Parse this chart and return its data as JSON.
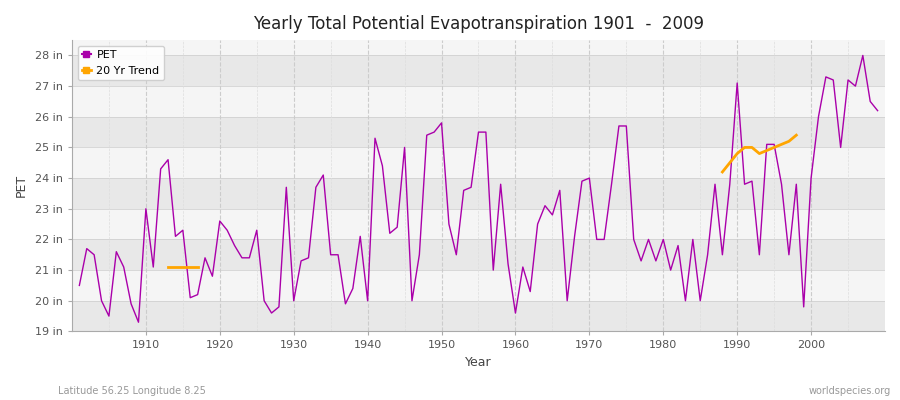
{
  "title": "Yearly Total Potential Evapotranspiration 1901  -  2009",
  "xlabel": "Year",
  "ylabel": "PET",
  "footnote_left": "Latitude 56.25 Longitude 8.25",
  "footnote_right": "worldspecies.org",
  "pet_color": "#aa00aa",
  "trend_color": "#ffa500",
  "fig_bg_color": "#ffffff",
  "plot_bg_color": "#f5f5f5",
  "stripe_color": "#e8e8e8",
  "ylim": [
    19,
    28.5
  ],
  "yticks": [
    19,
    20,
    21,
    22,
    23,
    24,
    25,
    26,
    27,
    28
  ],
  "xlim": [
    1900,
    2010
  ],
  "xticks": [
    1910,
    1920,
    1930,
    1940,
    1950,
    1960,
    1970,
    1980,
    1990,
    2000
  ],
  "years": [
    1901,
    1902,
    1903,
    1904,
    1905,
    1906,
    1907,
    1908,
    1909,
    1910,
    1911,
    1912,
    1913,
    1914,
    1915,
    1916,
    1917,
    1918,
    1919,
    1920,
    1921,
    1922,
    1923,
    1924,
    1925,
    1926,
    1927,
    1928,
    1929,
    1930,
    1931,
    1932,
    1933,
    1934,
    1935,
    1936,
    1937,
    1938,
    1939,
    1940,
    1941,
    1942,
    1943,
    1944,
    1945,
    1946,
    1947,
    1948,
    1949,
    1950,
    1951,
    1952,
    1953,
    1954,
    1955,
    1956,
    1957,
    1958,
    1959,
    1960,
    1961,
    1962,
    1963,
    1964,
    1965,
    1966,
    1967,
    1968,
    1969,
    1970,
    1971,
    1972,
    1973,
    1974,
    1975,
    1976,
    1977,
    1978,
    1979,
    1980,
    1981,
    1982,
    1983,
    1984,
    1985,
    1986,
    1987,
    1988,
    1989,
    1990,
    1991,
    1992,
    1993,
    1994,
    1995,
    1996,
    1997,
    1998,
    1999,
    2000,
    2001,
    2002,
    2003,
    2004,
    2005,
    2006,
    2007,
    2008,
    2009
  ],
  "pet_values": [
    20.5,
    21.7,
    21.5,
    20.0,
    19.5,
    21.6,
    21.1,
    19.9,
    19.3,
    23.0,
    21.1,
    24.3,
    24.6,
    22.1,
    22.3,
    20.1,
    20.2,
    21.4,
    20.8,
    22.6,
    22.3,
    21.8,
    21.4,
    21.4,
    22.3,
    20.0,
    19.6,
    19.8,
    23.7,
    20.0,
    21.3,
    21.4,
    23.7,
    24.1,
    21.5,
    21.5,
    19.9,
    20.4,
    22.1,
    20.0,
    25.3,
    24.4,
    22.2,
    22.4,
    25.0,
    20.0,
    21.5,
    25.4,
    25.5,
    25.8,
    22.5,
    21.5,
    23.6,
    23.7,
    25.5,
    25.5,
    21.0,
    23.8,
    21.2,
    19.6,
    21.1,
    20.3,
    22.5,
    23.1,
    22.8,
    23.6,
    20.0,
    22.1,
    23.9,
    24.0,
    22.0,
    22.0,
    23.8,
    25.7,
    25.7,
    22.0,
    21.3,
    22.0,
    21.3,
    22.0,
    21.0,
    21.8,
    20.0,
    22.0,
    20.0,
    21.5,
    23.8,
    21.5,
    23.8,
    27.1,
    23.8,
    23.9,
    21.5,
    25.1,
    25.1,
    23.8,
    21.5,
    23.8,
    19.8,
    24.0,
    26.0,
    27.3,
    27.2,
    25.0,
    27.2,
    27.0,
    28.0,
    26.5,
    26.2
  ],
  "trend1_years": [
    1913,
    1914,
    1915,
    1916,
    1917
  ],
  "trend1_values": [
    21.1,
    21.1,
    21.1,
    21.1,
    21.1
  ],
  "trend2_years": [
    1988,
    1989,
    1990,
    1991,
    1992,
    1993,
    1994,
    1995,
    1996,
    1997,
    1998
  ],
  "trend2_values": [
    24.2,
    24.5,
    24.8,
    25.0,
    25.0,
    24.8,
    24.9,
    25.0,
    25.1,
    25.2,
    25.4
  ]
}
